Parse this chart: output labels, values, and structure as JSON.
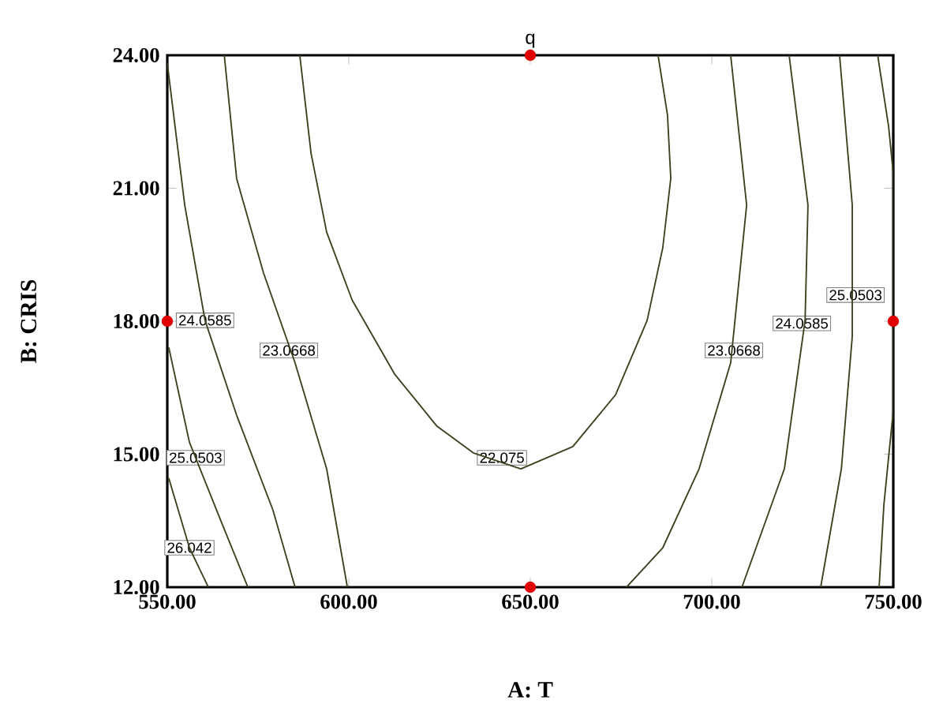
{
  "chart_data": {
    "type": "line",
    "xlabel": "A: T",
    "ylabel": "B: CRIS",
    "line_style": "solid",
    "xlim": [
      550,
      750
    ],
    "ylim": [
      12,
      24
    ],
    "xticks": [
      {
        "value": 550,
        "label": "550.00"
      },
      {
        "value": 600,
        "label": "600.00"
      },
      {
        "value": 650,
        "label": "650.00"
      },
      {
        "value": 700,
        "label": "700.00"
      },
      {
        "value": 750,
        "label": "750.00"
      }
    ],
    "yticks": [
      {
        "value": 12,
        "label": "12.00"
      },
      {
        "value": 15,
        "label": "15.00"
      },
      {
        "value": 18,
        "label": "18.00"
      },
      {
        "value": 21,
        "label": "21.00"
      },
      {
        "value": 24,
        "label": "24.00"
      }
    ],
    "series": [
      {
        "color": "#404020",
        "x": [
          586.5,
          589.6,
          593.9,
          600.9,
          612.6,
          624.3,
          634.3,
          647.4,
          661.7,
          673.5,
          682.2,
          686.5,
          688.7,
          687.8,
          685.2
        ],
        "values": [
          24.0,
          21.79,
          20.01,
          18.48,
          16.81,
          15.63,
          15.03,
          14.67,
          15.17,
          16.34,
          18.02,
          19.66,
          21.22,
          22.65,
          24.0
        ]
      },
      {
        "color": "#404020",
        "x": [
          565.7,
          569.1,
          576.5,
          585.2,
          593.9,
          599.6
        ],
        "values": [
          24.0,
          21.22,
          19.09,
          17.06,
          14.67,
          12.0
        ]
      },
      {
        "color": "#404020",
        "x": [
          705.2,
          709.6,
          705.2,
          696.5,
          686.5,
          676.5
        ],
        "values": [
          24.0,
          20.62,
          17.06,
          14.67,
          12.89,
          12.0
        ]
      },
      {
        "color": "#404020",
        "x": [
          550.0,
          554.8,
          560.4,
          569.1,
          579.1,
          585.2
        ],
        "values": [
          23.82,
          20.62,
          18.02,
          15.88,
          13.74,
          12.0
        ]
      },
      {
        "color": "#404020",
        "x": [
          721.3,
          726.5,
          725.7,
          720.0,
          708.3
        ],
        "values": [
          24.0,
          20.62,
          18.02,
          14.67,
          12.0
        ]
      },
      {
        "color": "#404020",
        "x": [
          550.4,
          556.1,
          557.8,
          564.8,
          572.2
        ],
        "values": [
          17.41,
          15.27,
          14.92,
          13.49,
          12.0
        ]
      },
      {
        "color": "#404020",
        "x": [
          735.2,
          738.7,
          738.7,
          735.7,
          730.0
        ],
        "values": [
          24.0,
          20.62,
          17.66,
          14.67,
          12.0
        ]
      },
      {
        "color": "#404020",
        "x": [
          550.4,
          556.1,
          561.3
        ],
        "values": [
          14.46,
          12.89,
          12.0
        ]
      },
      {
        "color": "#404020",
        "x": [
          745.7,
          748.7,
          750.0,
          750.0,
          747.4,
          746.1
        ],
        "values": [
          24.0,
          22.4,
          21.33,
          15.99,
          13.85,
          12.0
        ]
      },
      {
        "type": "scatter",
        "color": "#e00000",
        "x": [
          650,
          550,
          750,
          650
        ],
        "values": [
          24,
          18,
          18,
          12
        ]
      }
    ],
    "annotations": [
      "q",
      {
        "text": "24.0585",
        "x": 560.4,
        "y": 18.02
      },
      {
        "text": "23.0668",
        "x": 583.5,
        "y": 17.34
      },
      {
        "text": "25.0503",
        "x": 557.8,
        "y": 14.92
      },
      {
        "text": "26.042",
        "x": 556.1,
        "y": 12.89
      },
      {
        "text": "22.075",
        "x": 642.2,
        "y": 14.92
      },
      {
        "text": "23.0668",
        "x": 706.1,
        "y": 17.34
      },
      {
        "text": "24.0585",
        "x": 724.8,
        "y": 17.95
      },
      {
        "text": "25.0503",
        "x": 739.6,
        "y": 18.59
      }
    ]
  }
}
